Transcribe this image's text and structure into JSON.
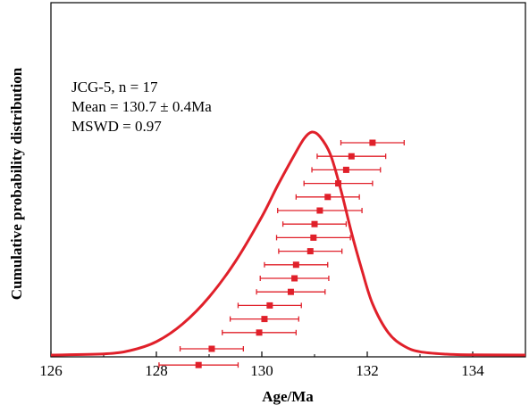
{
  "chart_data": {
    "type": "scatter",
    "title": "",
    "xlabel": "Age/Ma",
    "ylabel": "Cumulative probability distribution",
    "xlim": [
      126,
      135
    ],
    "ylim": [
      0,
      1
    ],
    "x_ticks": [
      "126",
      "128",
      "130",
      "132",
      "134"
    ],
    "annotation": [
      "JCG-5, n = 17",
      "Mean = 130.7 ± 0.4Ma",
      "MSWD = 0.97"
    ],
    "series_color": "#e0202a",
    "ages": [
      {
        "x": 132.1,
        "err": 0.6
      },
      {
        "x": 131.7,
        "err": 0.65
      },
      {
        "x": 131.6,
        "err": 0.65
      },
      {
        "x": 131.45,
        "err": 0.65
      },
      {
        "x": 131.25,
        "err": 0.6
      },
      {
        "x": 131.1,
        "err": 0.8
      },
      {
        "x": 131.0,
        "err": 0.6
      },
      {
        "x": 130.98,
        "err": 0.7
      },
      {
        "x": 130.92,
        "err": 0.6
      },
      {
        "x": 130.65,
        "err": 0.6
      },
      {
        "x": 130.62,
        "err": 0.65
      },
      {
        "x": 130.55,
        "err": 0.65
      },
      {
        "x": 130.15,
        "err": 0.6
      },
      {
        "x": 130.05,
        "err": 0.65
      },
      {
        "x": 129.95,
        "err": 0.7
      },
      {
        "x": 129.05,
        "err": 0.6
      },
      {
        "x": 128.8,
        "err": 0.75
      }
    ],
    "probability_curve": {
      "x": [
        126,
        127,
        127.5,
        128,
        128.5,
        129,
        129.5,
        130,
        130.3,
        130.6,
        130.8,
        130.95,
        131.1,
        131.3,
        131.5,
        131.7,
        131.9,
        132.1,
        132.4,
        132.7,
        133,
        133.5,
        134,
        135
      ],
      "y": [
        0,
        0.005,
        0.02,
        0.06,
        0.14,
        0.26,
        0.42,
        0.62,
        0.76,
        0.89,
        0.97,
        1.0,
        0.98,
        0.9,
        0.74,
        0.55,
        0.38,
        0.23,
        0.1,
        0.04,
        0.015,
        0.004,
        0.001,
        0
      ]
    }
  }
}
